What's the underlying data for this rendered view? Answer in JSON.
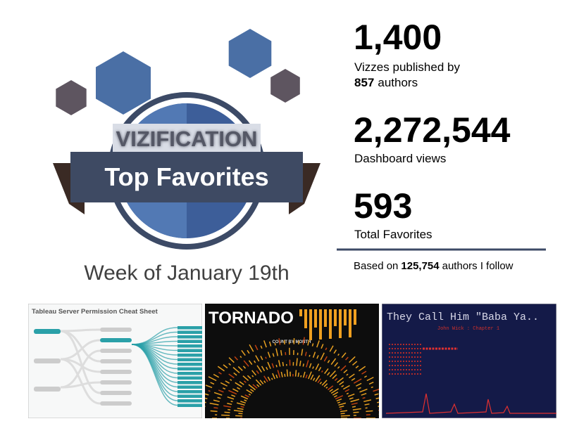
{
  "badge": {
    "label": "VIZIFICATION",
    "title": "Top Favorites",
    "week": "Week of January 19th"
  },
  "stats": [
    {
      "number": "1,400",
      "text": "Vizzes published by",
      "count": "857",
      "count_text": "authors"
    },
    {
      "number": "2,272,544",
      "text": "Dashboard views"
    },
    {
      "number": "593",
      "text": "Total Favorites"
    }
  ],
  "footnote": {
    "prefix": "Based on",
    "number": "125,754",
    "suffix": "authors I follow"
  },
  "thumbnails": [
    {
      "title": "Tableau Server Permission Cheat Sheet"
    },
    {
      "title": "TORNADO",
      "subtitle": "COUNT BY MONTH"
    },
    {
      "title": "They Call Him \"Baba Ya..",
      "subtitle": "John Wick : Chapter 1"
    }
  ]
}
